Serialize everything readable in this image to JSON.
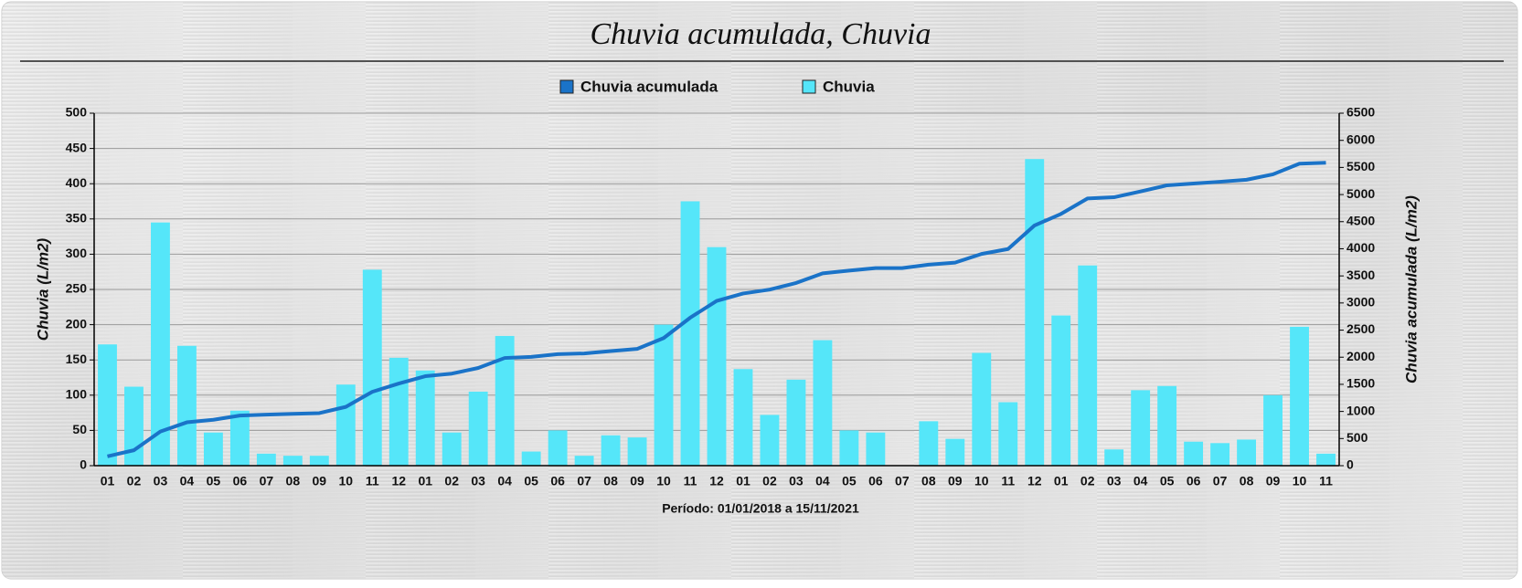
{
  "chart_data": {
    "type": "bar_line",
    "title": "Chuvia acumulada, Chuvia",
    "x_label": "Período: 01/01/2018 a 15/11/2021",
    "y_label": "Chuvia (L/m2)",
    "y2_label": "Chuvia acumulada (L/m2)",
    "categories": [
      "01",
      "02",
      "03",
      "04",
      "05",
      "06",
      "07",
      "08",
      "09",
      "10",
      "11",
      "12",
      "01",
      "02",
      "03",
      "04",
      "05",
      "06",
      "07",
      "08",
      "09",
      "10",
      "11",
      "12",
      "01",
      "02",
      "03",
      "04",
      "05",
      "06",
      "07",
      "08",
      "09",
      "10",
      "11",
      "12",
      "01",
      "02",
      "03",
      "04",
      "05",
      "06",
      "07",
      "08",
      "09",
      "10",
      "11"
    ],
    "series": [
      {
        "name": "Chuvia acumulada",
        "type": "line",
        "axis": "y2",
        "color": "#1a73c8",
        "values": [
          172,
          284,
          629,
          799,
          846,
          924,
          941,
          955,
          969,
          1084,
          1362,
          1515,
          1650,
          1697,
          1802,
          1986,
          2006,
          2056,
          2070,
          2113,
          2153,
          2353,
          2728,
          3038,
          3175,
          3247,
          3369,
          3547,
          3597,
          3644,
          3644,
          3707,
          3745,
          3905,
          3995,
          4430,
          4643,
          4927,
          4950,
          5057,
          5170,
          5204,
          5236,
          5273,
          5373,
          5570,
          5587
        ]
      },
      {
        "name": "Chuvia",
        "type": "bar",
        "axis": "y",
        "color": "#55e6f9",
        "values": [
          172,
          112,
          345,
          170,
          47,
          78,
          17,
          14,
          14,
          115,
          278,
          153,
          135,
          47,
          105,
          184,
          20,
          50,
          14,
          43,
          40,
          200,
          375,
          310,
          137,
          72,
          122,
          178,
          50,
          47,
          0,
          63,
          38,
          160,
          90,
          435,
          213,
          284,
          23,
          107,
          113,
          34,
          32,
          37,
          100,
          197,
          17
        ]
      }
    ],
    "ylim": [
      0,
      500
    ],
    "yticks": [
      0,
      50,
      100,
      150,
      200,
      250,
      300,
      350,
      400,
      450,
      500
    ],
    "y2lim": [
      0,
      6500
    ],
    "y2ticks": [
      0,
      500,
      1000,
      1500,
      2000,
      2500,
      3000,
      3500,
      4000,
      4500,
      5000,
      5500,
      6000,
      6500
    ],
    "grid": true
  }
}
